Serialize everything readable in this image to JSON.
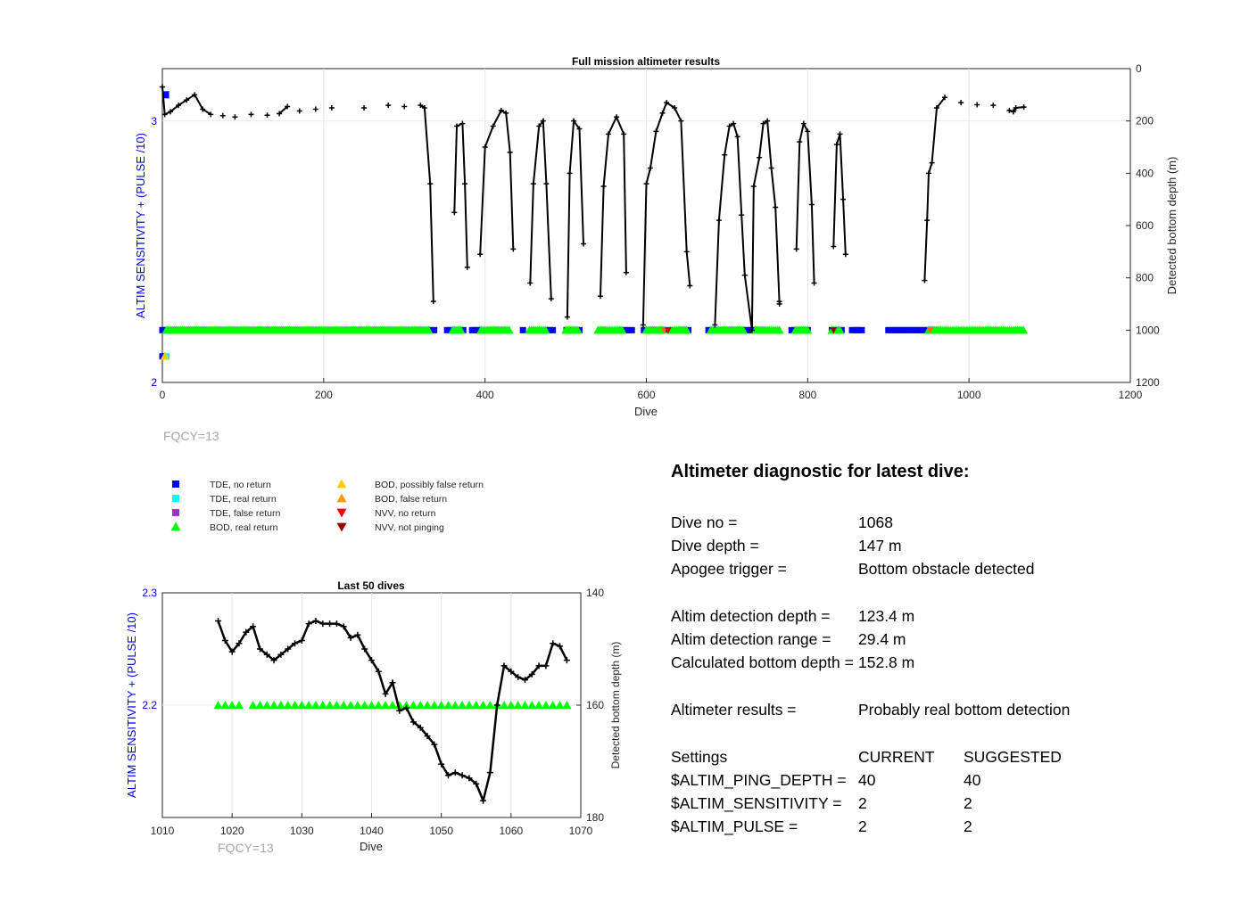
{
  "chart_data": [
    {
      "type": "scatter",
      "title": "Full mission altimeter results",
      "xlabel": "Dive",
      "ylabel_left": "ALTIM SENSITIVITY + (PULSE /10)",
      "ylabel_right": "Detected bottom depth (m)",
      "xlim": [
        0,
        1200
      ],
      "ylim_left": [
        2,
        3.2
      ],
      "ylim_right_reversed": [
        0,
        1200
      ],
      "xticks": [
        "0",
        "200",
        "400",
        "600",
        "800",
        "1000",
        "1200"
      ],
      "yticks_left": [
        "2",
        "3"
      ],
      "yticks_right": [
        "0",
        "200",
        "400",
        "600",
        "800",
        "1000",
        "1200"
      ],
      "grid": true,
      "fqcy_label": "FQCY=13",
      "depth_series": [
        [
          0,
          70
        ],
        [
          3,
          175
        ],
        [
          10,
          165
        ],
        [
          20,
          140
        ],
        [
          30,
          120
        ],
        [
          40,
          100
        ],
        [
          50,
          155
        ],
        [
          60,
          175
        ],
        [
          75,
          180
        ],
        [
          90,
          185
        ],
        [
          110,
          175
        ],
        [
          130,
          178
        ],
        [
          145,
          172
        ],
        [
          155,
          145
        ],
        [
          170,
          162
        ],
        [
          190,
          155
        ],
        [
          210,
          150
        ],
        [
          250,
          150
        ],
        [
          280,
          140
        ],
        [
          300,
          145
        ],
        [
          320,
          140
        ],
        [
          325,
          150
        ],
        [
          332,
          440
        ],
        [
          336,
          890
        ],
        [
          362,
          550
        ],
        [
          365,
          220
        ],
        [
          372,
          210
        ],
        [
          375,
          440
        ],
        [
          378,
          760
        ],
        [
          394,
          710
        ],
        [
          400,
          300
        ],
        [
          410,
          220
        ],
        [
          420,
          160
        ],
        [
          426,
          170
        ],
        [
          431,
          320
        ],
        [
          435,
          690
        ],
        [
          456,
          820
        ],
        [
          460,
          440
        ],
        [
          467,
          220
        ],
        [
          472,
          200
        ],
        [
          476,
          440
        ],
        [
          482,
          880
        ],
        [
          502,
          950
        ],
        [
          505,
          400
        ],
        [
          510,
          200
        ],
        [
          517,
          230
        ],
        [
          522,
          670
        ],
        [
          543,
          870
        ],
        [
          547,
          450
        ],
        [
          553,
          250
        ],
        [
          563,
          185
        ],
        [
          572,
          250
        ],
        [
          575,
          780
        ],
        [
          596,
          980
        ],
        [
          600,
          440
        ],
        [
          605,
          380
        ],
        [
          612,
          240
        ],
        [
          620,
          170
        ],
        [
          625,
          130
        ],
        [
          635,
          150
        ],
        [
          643,
          200
        ],
        [
          650,
          700
        ],
        [
          654,
          830
        ],
        [
          685,
          980
        ],
        [
          690,
          580
        ],
        [
          697,
          330
        ],
        [
          703,
          220
        ],
        [
          708,
          210
        ],
        [
          713,
          260
        ],
        [
          718,
          560
        ],
        [
          722,
          790
        ],
        [
          731,
          1000
        ],
        [
          733,
          450
        ],
        [
          740,
          340
        ],
        [
          745,
          210
        ],
        [
          750,
          200
        ],
        [
          755,
          380
        ],
        [
          760,
          530
        ],
        [
          765,
          900
        ],
        [
          786,
          690
        ],
        [
          790,
          280
        ],
        [
          795,
          210
        ],
        [
          800,
          240
        ],
        [
          805,
          520
        ],
        [
          808,
          820
        ],
        [
          832,
          680
        ],
        [
          836,
          290
        ],
        [
          840,
          250
        ],
        [
          844,
          500
        ],
        [
          847,
          710
        ],
        [
          945,
          810
        ],
        [
          948,
          580
        ],
        [
          950,
          400
        ],
        [
          954,
          360
        ],
        [
          960,
          150
        ],
        [
          970,
          110
        ],
        [
          990,
          130
        ],
        [
          1010,
          138
        ],
        [
          1030,
          140
        ],
        [
          1050,
          160
        ],
        [
          1055,
          165
        ],
        [
          1058,
          150
        ],
        [
          1068,
          147
        ]
      ],
      "legend": {
        "col1": [
          {
            "label": "TDE, no return",
            "color": "#0000ff",
            "marker": "square"
          },
          {
            "label": "TDE, real return",
            "color": "#00ffff",
            "marker": "square"
          },
          {
            "label": "TDE, false return",
            "color": "#9933cc",
            "marker": "square"
          },
          {
            "label": "BOD, real return",
            "color": "#00ff00",
            "marker": "triangle-up"
          }
        ],
        "col2": [
          {
            "label": "BOD, possibly false return",
            "color": "#ffcc00",
            "marker": "triangle-up"
          },
          {
            "label": "BOD, false return",
            "color": "#ff9900",
            "marker": "triangle-up"
          },
          {
            "label": "NVV, no return",
            "color": "#ff0000",
            "marker": "triangle-down"
          },
          {
            "label": "NVV, not pinging",
            "color": "#990000",
            "marker": "triangle-down"
          }
        ]
      }
    },
    {
      "type": "scatter",
      "title": "Last 50 dives",
      "xlabel": "Dive",
      "ylabel_left": "ALTIM SENSITIVITY + (PULSE /10)",
      "ylabel_right": "Detected bottom depth (m)",
      "xlim": [
        1010,
        1070
      ],
      "ylim_left": [
        2.1,
        2.3
      ],
      "ylim_right_reversed": [
        140,
        180
      ],
      "xticks": [
        "1010",
        "1020",
        "1030",
        "1040",
        "1050",
        "1060",
        "1070"
      ],
      "yticks_left": [
        "2.2",
        "2.3"
      ],
      "yticks_right": [
        "140",
        "160",
        "180"
      ],
      "fqcy_label": "FQCY=13",
      "depth_series": [
        [
          1018,
          145
        ],
        [
          1019,
          148.5
        ],
        [
          1020,
          150.5
        ],
        [
          1021,
          149
        ],
        [
          1022,
          147
        ],
        [
          1023,
          146
        ],
        [
          1024,
          150
        ],
        [
          1025,
          151
        ],
        [
          1026,
          152
        ],
        [
          1027,
          151
        ],
        [
          1028,
          150
        ],
        [
          1029,
          149
        ],
        [
          1030,
          148.5
        ],
        [
          1031,
          145.5
        ],
        [
          1032,
          145
        ],
        [
          1033,
          145.5
        ],
        [
          1034,
          145.5
        ],
        [
          1035,
          145.5
        ],
        [
          1036,
          146
        ],
        [
          1037,
          148
        ],
        [
          1038,
          147.5
        ],
        [
          1039,
          150
        ],
        [
          1040,
          152
        ],
        [
          1041,
          154
        ],
        [
          1042,
          158
        ],
        [
          1043,
          156
        ],
        [
          1044,
          161
        ],
        [
          1045,
          160.5
        ],
        [
          1046,
          163
        ],
        [
          1047,
          164
        ],
        [
          1048,
          165.5
        ],
        [
          1049,
          167
        ],
        [
          1050,
          170.5
        ],
        [
          1051,
          172.5
        ],
        [
          1052,
          172
        ],
        [
          1053,
          172.5
        ],
        [
          1054,
          173
        ],
        [
          1055,
          174
        ],
        [
          1056,
          177
        ],
        [
          1057,
          172
        ],
        [
          1058,
          160
        ],
        [
          1059,
          153
        ],
        [
          1060,
          154
        ],
        [
          1061,
          155
        ],
        [
          1062,
          155.5
        ],
        [
          1063,
          154.5
        ],
        [
          1064,
          153
        ],
        [
          1065,
          153
        ],
        [
          1066,
          149
        ],
        [
          1067,
          149.5
        ],
        [
          1068,
          152
        ]
      ],
      "bod_real_return_dives": [
        1018,
        1019,
        1020,
        1021,
        1023,
        1024,
        1025,
        1026,
        1027,
        1028,
        1029,
        1030,
        1031,
        1032,
        1033,
        1034,
        1035,
        1036,
        1037,
        1038,
        1039,
        1040,
        1041,
        1042,
        1043,
        1044,
        1045,
        1046,
        1047,
        1048,
        1049,
        1050,
        1051,
        1052,
        1053,
        1054,
        1055,
        1056,
        1057,
        1058,
        1059,
        1060,
        1061,
        1062,
        1063,
        1064,
        1065,
        1066,
        1067,
        1068
      ],
      "bod_real_return_value": 2.2
    }
  ],
  "diagnostic": {
    "title": "Altimeter diagnostic for latest dive:",
    "rows": [
      {
        "label": "Dive no =",
        "value": "1068"
      },
      {
        "label": "Dive depth =",
        "value": "147 m"
      },
      {
        "label": "Apogee trigger =",
        "value": "Bottom obstacle detected"
      },
      {
        "label": "Altim detection depth =",
        "value": "123.4 m"
      },
      {
        "label": "Altim detection range =",
        "value": "29.4 m"
      },
      {
        "label": "Calculated bottom depth =",
        "value": "152.8 m"
      },
      {
        "label": "Altimeter results =",
        "value": "Probably real bottom detection"
      }
    ],
    "settings": {
      "header": [
        "Settings",
        "CURRENT",
        "SUGGESTED"
      ],
      "rows": [
        {
          "name": "$ALTIM_PING_DEPTH =",
          "current": "40",
          "suggested": "40"
        },
        {
          "name": "$ALTIM_SENSITIVITY =",
          "current": "2",
          "suggested": "2"
        },
        {
          "name": "$ALTIM_PULSE =",
          "current": "2",
          "suggested": "2"
        }
      ]
    }
  }
}
